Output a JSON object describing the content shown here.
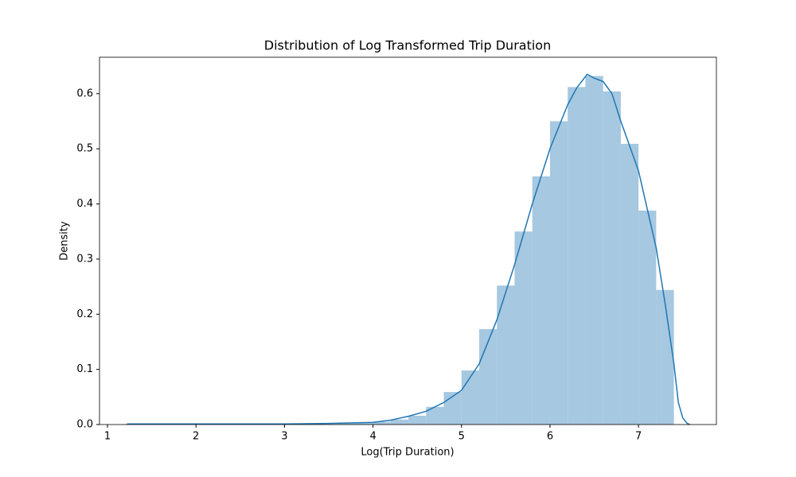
{
  "chart_data": {
    "type": "histogram",
    "title": "Distribution of Log Transformed Trip Duration",
    "xlabel": "Log(Trip Duration)",
    "ylabel": "Density",
    "bins": [
      1.2,
      1.4,
      1.6,
      1.8,
      2.0,
      2.2,
      2.4,
      2.6,
      2.8,
      3.0,
      3.2,
      3.4,
      3.6,
      3.8,
      4.0,
      4.2,
      4.4,
      4.6,
      4.8,
      5.0,
      5.2,
      5.4,
      5.6,
      5.8,
      6.0,
      6.2,
      6.4,
      6.6,
      6.8,
      7.0,
      7.2,
      7.4
    ],
    "values": [
      0.001,
      0.001,
      0.001,
      0.001,
      0.001,
      0.001,
      0.001,
      0.001,
      0.001,
      0.001,
      0.001,
      0.001,
      0.002,
      0.003,
      0.005,
      0.009,
      0.016,
      0.032,
      0.059,
      0.098,
      0.173,
      0.252,
      0.35,
      0.45,
      0.55,
      0.612,
      0.632,
      0.604,
      0.509,
      0.388,
      0.244
    ],
    "color": "#a6c8e0",
    "kde": {
      "x": [
        1.22,
        2,
        3,
        3.5,
        4,
        4.2,
        4.4,
        4.6,
        4.8,
        5.0,
        5.2,
        5.4,
        5.6,
        5.8,
        6.0,
        6.2,
        6.3,
        6.42,
        6.5,
        6.6,
        6.7,
        6.8,
        7.0,
        7.2,
        7.3,
        7.4,
        7.45,
        7.5,
        7.55,
        7.58
      ],
      "values": [
        0.001,
        0.001,
        0.001,
        0.002,
        0.004,
        0.008,
        0.015,
        0.024,
        0.04,
        0.062,
        0.11,
        0.19,
        0.29,
        0.4,
        0.5,
        0.58,
        0.61,
        0.635,
        0.628,
        0.622,
        0.6,
        0.55,
        0.46,
        0.32,
        0.22,
        0.11,
        0.04,
        0.012,
        0.002,
        0
      ],
      "color": "#1f77b4"
    },
    "xlim": [
      0.91,
      7.88
    ],
    "ylim": [
      0,
      0.666
    ],
    "xticks": [
      1,
      2,
      3,
      4,
      5,
      6,
      7
    ],
    "yticks": [
      {
        "value": 0,
        "label": "0.0"
      },
      0.1,
      0.2,
      0.3,
      0.4,
      0.5,
      0.6
    ]
  }
}
